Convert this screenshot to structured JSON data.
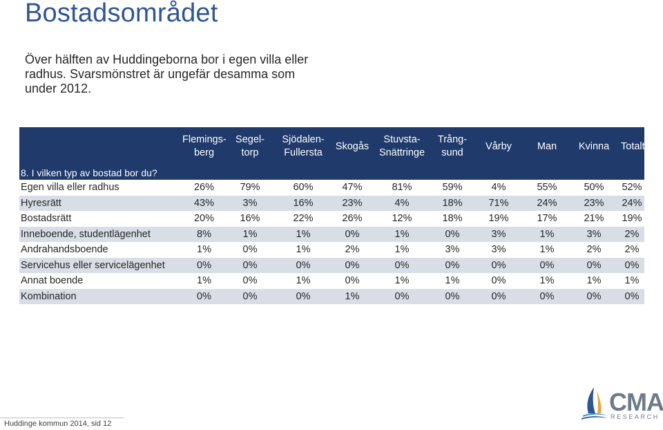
{
  "title": "Bostadsområdet",
  "intro": "Över hälften av Huddingeborna bor i egen villa eller radhus. Svarsmönstret är ungefär desamma som under 2012.",
  "table": {
    "columns": [
      [
        "Flemings-",
        "berg"
      ],
      [
        "Segel-",
        "torp"
      ],
      [
        "Sjödalen-",
        "Fullersta"
      ],
      [
        "Skogås",
        ""
      ],
      [
        "Stuvsta-",
        "Snättringe"
      ],
      [
        "Trång-",
        "sund"
      ],
      [
        "Vårby",
        ""
      ],
      [
        "Man",
        ""
      ],
      [
        "Kvinna",
        ""
      ],
      [
        "Totalt",
        ""
      ]
    ],
    "question": "8. I vilken typ av bostad bor du?",
    "rows": [
      {
        "label": "Egen villa eller radhus",
        "values": [
          "26%",
          "79%",
          "60%",
          "47%",
          "81%",
          "59%",
          "4%",
          "55%",
          "50%",
          "52%"
        ]
      },
      {
        "label": "Hyresrätt",
        "values": [
          "43%",
          "3%",
          "16%",
          "23%",
          "4%",
          "18%",
          "71%",
          "24%",
          "23%",
          "24%"
        ]
      },
      {
        "label": "Bostadsrätt",
        "values": [
          "20%",
          "16%",
          "22%",
          "26%",
          "12%",
          "18%",
          "19%",
          "17%",
          "21%",
          "19%"
        ]
      },
      {
        "label": "Inneboende, studentlägenhet",
        "values": [
          "8%",
          "1%",
          "1%",
          "0%",
          "1%",
          "0%",
          "3%",
          "1%",
          "3%",
          "2%"
        ]
      },
      {
        "label": "Andrahandsboende",
        "values": [
          "1%",
          "0%",
          "1%",
          "2%",
          "1%",
          "3%",
          "3%",
          "1%",
          "2%",
          "2%"
        ]
      },
      {
        "label": "Servicehus eller servicelägenhet",
        "values": [
          "0%",
          "0%",
          "0%",
          "0%",
          "0%",
          "0%",
          "0%",
          "0%",
          "0%",
          "0%"
        ]
      },
      {
        "label": "Annat boende",
        "values": [
          "1%",
          "0%",
          "1%",
          "0%",
          "1%",
          "1%",
          "0%",
          "1%",
          "1%",
          "1%"
        ]
      },
      {
        "label": "Kombination",
        "values": [
          "0%",
          "0%",
          "0%",
          "1%",
          "0%",
          "0%",
          "0%",
          "0%",
          "0%",
          "0%"
        ]
      }
    ]
  },
  "footer": "Huddinge kommun 2014, sid 12",
  "logo": {
    "name": "CMA",
    "sub": "RESEARCH",
    "icon": "sailboat-logo-icon"
  },
  "colors": {
    "title": "#2f5597",
    "header_bg": "#1f3a6b",
    "row_alt": "#d9dde6",
    "logo_gray": "#6e7b8b"
  }
}
